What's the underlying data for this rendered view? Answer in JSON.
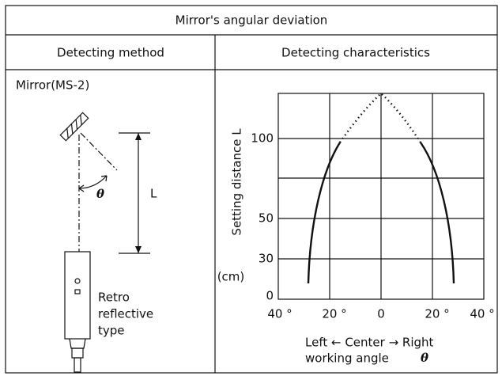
{
  "header": {
    "title": "Mirror's angular deviation"
  },
  "columns": [
    "Detecting method",
    "Detecting characteristics"
  ],
  "method": {
    "mirror_label": "Mirror(MS-2)",
    "angle_symbol": "θ",
    "distance_symbol": "L",
    "sensor_label": [
      "Retro",
      "reflective",
      "type"
    ]
  },
  "characteristics": {
    "y_axis_label": "Setting distance L",
    "y_unit": "(cm)",
    "y_tick_labels": [
      "100",
      "50",
      "30",
      "0"
    ],
    "x_tick_labels": [
      "40 °",
      "20 °",
      "0",
      "20 °",
      "40 °"
    ],
    "x_axis_label": [
      "Left ← Center → Right",
      "working angle"
    ],
    "x_axis_symbol": "θ"
  }
}
